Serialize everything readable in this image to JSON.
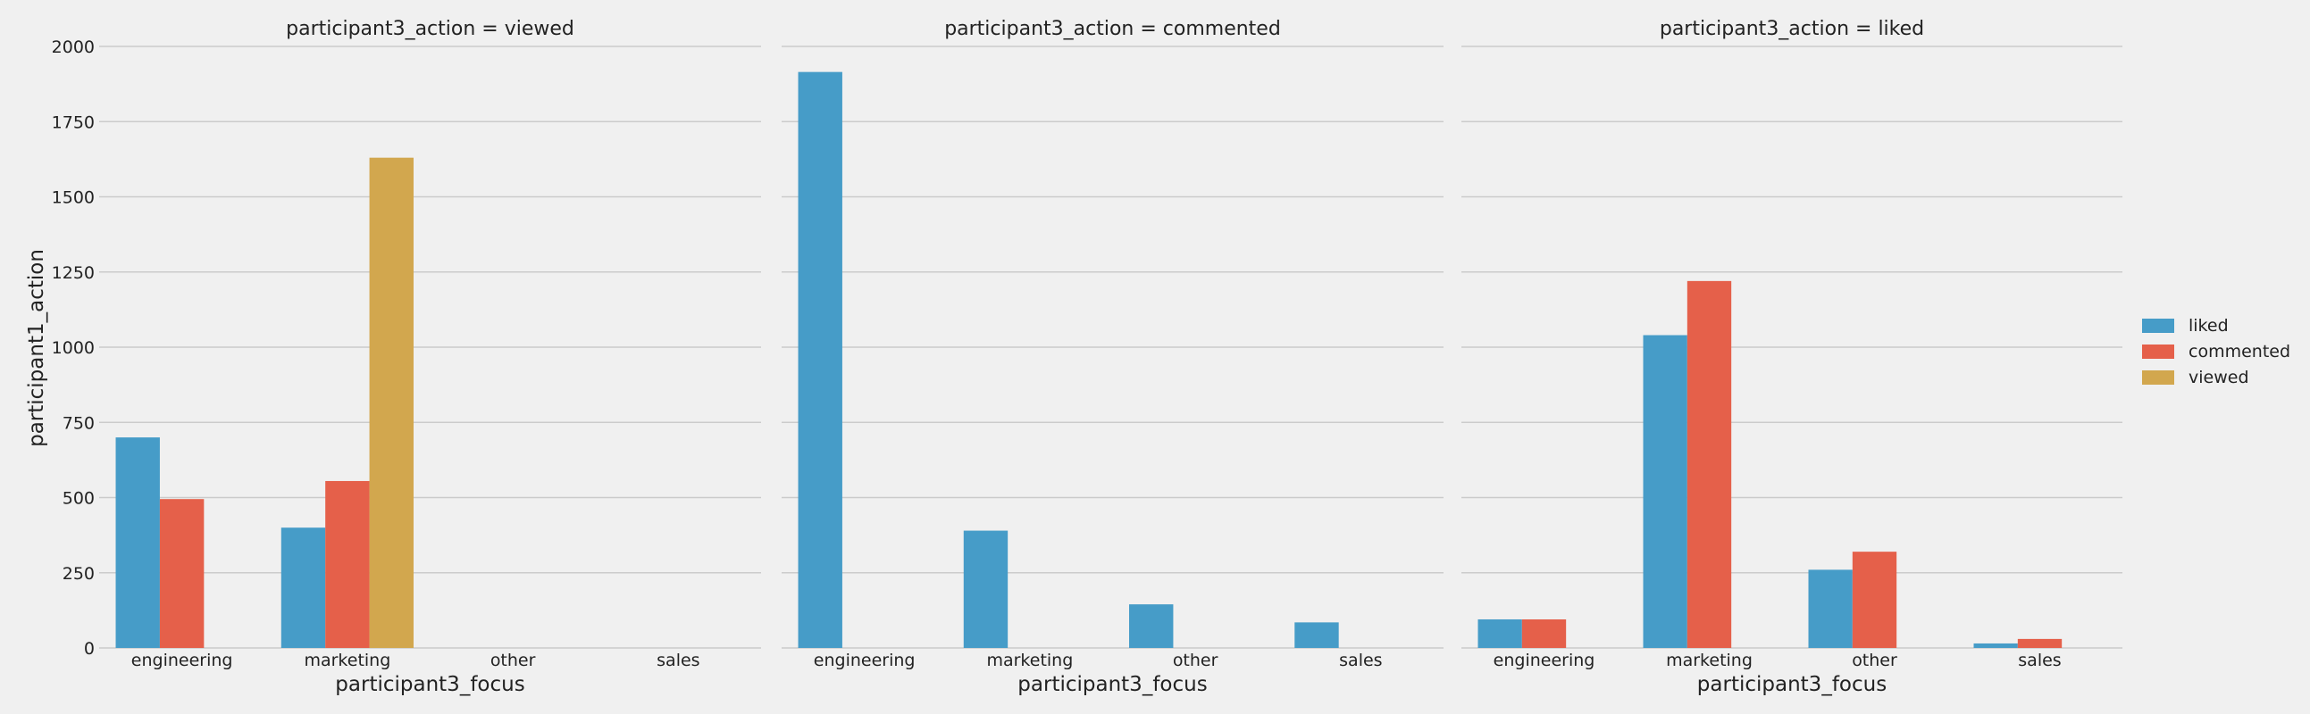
{
  "chart_data": {
    "type": "bar",
    "ylabel": "participant1_action",
    "xlabel": "participant3_focus",
    "ylim": [
      0,
      2000
    ],
    "yticks": [
      0,
      250,
      500,
      750,
      1000,
      1250,
      1500,
      1750,
      2000
    ],
    "grid": "horizontal",
    "legend_placement": "right",
    "categories": [
      "engineering",
      "marketing",
      "other",
      "sales"
    ],
    "hue_order": [
      "liked",
      "commented",
      "viewed"
    ],
    "colors": {
      "liked": "#469cc8",
      "commented": "#e5604a",
      "viewed": "#d2a74e"
    },
    "panels": [
      {
        "title": "participant3_action = viewed",
        "series": [
          {
            "name": "liked",
            "values": [
              700,
              400,
              null,
              null
            ]
          },
          {
            "name": "commented",
            "values": [
              495,
              555,
              null,
              null
            ]
          },
          {
            "name": "viewed",
            "values": [
              null,
              1630,
              null,
              null
            ]
          }
        ]
      },
      {
        "title": "participant3_action = commented",
        "series": [
          {
            "name": "liked",
            "values": [
              1915,
              390,
              145,
              85
            ]
          }
        ]
      },
      {
        "title": "participant3_action = liked",
        "series": [
          {
            "name": "liked",
            "values": [
              95,
              1040,
              260,
              15
            ]
          },
          {
            "name": "commented",
            "values": [
              95,
              1220,
              320,
              30
            ]
          }
        ]
      }
    ],
    "legend": [
      {
        "name": "liked",
        "color": "#469cc8"
      },
      {
        "name": "commented",
        "color": "#e5604a"
      },
      {
        "name": "viewed",
        "color": "#d2a74e"
      }
    ]
  }
}
